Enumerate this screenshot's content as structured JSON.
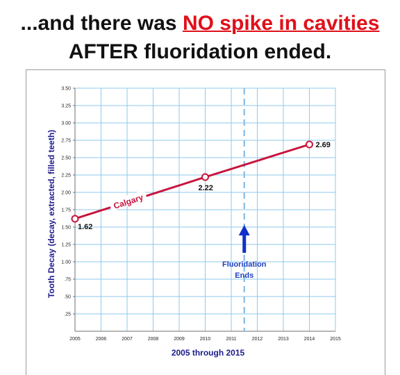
{
  "headline": {
    "line1_prefix": "...and there was ",
    "line1_emphasis": "NO spike in cavities",
    "line2": "AFTER fluoridation ended."
  },
  "colors": {
    "series": "#c8143c",
    "emphasis": "#e0101a",
    "annotation": "#1f3fc2",
    "axis_title": "#1a1a8c",
    "grid": "#8ec9ee"
  },
  "chart_data": {
    "type": "line",
    "title": "",
    "xlabel": "2005 through 2015",
    "ylabel": "Tooth Decay (decay, extracted, filled teeth)",
    "xlim": [
      2005,
      2015
    ],
    "ylim": [
      0,
      3.5
    ],
    "x_ticks": [
      "2005",
      "2006",
      "2007",
      "2008",
      "2009",
      "2010",
      "2011",
      "2012",
      "2013",
      "2014",
      "2015"
    ],
    "y_ticks": [
      ".25",
      ".50",
      ".75",
      "1.00",
      "1.25",
      "1.50",
      "1.75",
      "2.00",
      "2.25",
      "2.50",
      "2.75",
      "3.00",
      "3.25",
      "3.50"
    ],
    "grid": true,
    "series": [
      {
        "name": "Calgary",
        "x": [
          2005,
          2010,
          2014
        ],
        "y": [
          1.62,
          2.22,
          2.69
        ],
        "labels": [
          "1.62",
          "2.22",
          "2.69"
        ]
      }
    ],
    "annotations": [
      {
        "x": 2011.5,
        "style": "dashed-vertical-line",
        "text_lines": [
          "Fluoridation",
          "Ends"
        ],
        "arrow_to_y": 1.5
      }
    ]
  }
}
